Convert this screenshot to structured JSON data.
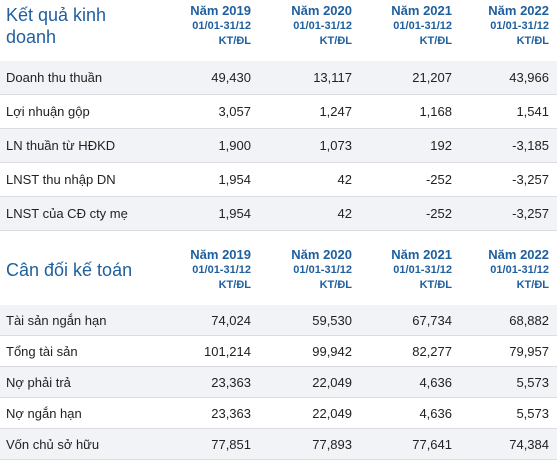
{
  "business": {
    "title": "Kết quả kinh doanh",
    "columns": [
      {
        "year": "Năm 2019",
        "period": "01/01-31/12",
        "type": "KT/ĐL"
      },
      {
        "year": "Năm 2020",
        "period": "01/01-31/12",
        "type": "KT/ĐL"
      },
      {
        "year": "Năm 2021",
        "period": "01/01-31/12",
        "type": "KT/ĐL"
      },
      {
        "year": "Năm 2022",
        "period": "01/01-31/12",
        "type": "KT/ĐL"
      }
    ],
    "rows": [
      {
        "label": "Doanh thu thuần",
        "values": [
          "49,430",
          "13,117",
          "21,207",
          "43,966"
        ]
      },
      {
        "label": "Lợi nhuận gộp",
        "values": [
          "3,057",
          "1,247",
          "1,168",
          "1,541"
        ]
      },
      {
        "label": "LN thuần từ HĐKD",
        "values": [
          "1,900",
          "1,073",
          "192",
          "-3,185"
        ]
      },
      {
        "label": "LNST thu nhập DN",
        "values": [
          "1,954",
          "42",
          "-252",
          "-3,257"
        ]
      },
      {
        "label": "LNST của CĐ cty mẹ",
        "values": [
          "1,954",
          "42",
          "-252",
          "-3,257"
        ]
      }
    ]
  },
  "balance": {
    "title": "Cân đối kế toán",
    "columns": [
      {
        "year": "Năm 2019",
        "period": "01/01-31/12",
        "type": "KT/ĐL"
      },
      {
        "year": "Năm 2020",
        "period": "01/01-31/12",
        "type": "KT/ĐL"
      },
      {
        "year": "Năm 2021",
        "period": "01/01-31/12",
        "type": "KT/ĐL"
      },
      {
        "year": "Năm 2022",
        "period": "01/01-31/12",
        "type": "KT/ĐL"
      }
    ],
    "rows": [
      {
        "label": "Tài sản ngắn hạn",
        "values": [
          "74,024",
          "59,530",
          "67,734",
          "68,882"
        ]
      },
      {
        "label": "Tổng tài sản",
        "values": [
          "101,214",
          "99,942",
          "82,277",
          "79,957"
        ]
      },
      {
        "label": "Nợ phải trả",
        "values": [
          "23,363",
          "22,049",
          "4,636",
          "5,573"
        ]
      },
      {
        "label": "Nợ ngắn hạn",
        "values": [
          "23,363",
          "22,049",
          "4,636",
          "5,573"
        ]
      },
      {
        "label": "Vốn chủ sở hữu",
        "values": [
          "77,851",
          "77,893",
          "77,641",
          "74,384"
        ]
      }
    ]
  },
  "colors": {
    "accent": "#1f5f9e",
    "row_alt": "#f1f3f6",
    "divider": "#d9dde3"
  }
}
